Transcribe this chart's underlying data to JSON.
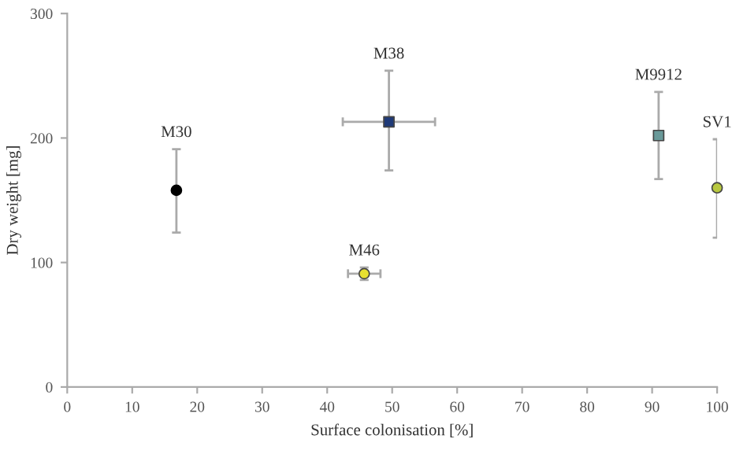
{
  "chart_data": {
    "type": "scatter",
    "xlabel": "Surface colonisation [%]",
    "ylabel": "Dry weight [mg]",
    "xlim": [
      0,
      100
    ],
    "ylim": [
      0,
      300
    ],
    "xticks": [
      0,
      10,
      20,
      30,
      40,
      50,
      60,
      70,
      80,
      90,
      100
    ],
    "yticks": [
      0,
      100,
      200,
      300
    ],
    "grid": false,
    "series": [
      {
        "color": "#000000",
        "marker": "circle",
        "x": [
          16.8
        ],
        "values": [
          158
        ],
        "errors": [
          [
            124,
            191
          ]
        ],
        "xerrors": [
          null
        ]
      },
      {
        "color": "#1f3a78",
        "marker": "square",
        "x": [
          49.5
        ],
        "values": [
          213
        ],
        "errors": [
          [
            174,
            254
          ]
        ],
        "xerrors": [
          [
            42.4,
            56.6
          ]
        ]
      },
      {
        "color": "#e8e030",
        "marker": "circle",
        "x": [
          45.7
        ],
        "values": [
          91
        ],
        "errors": [
          [
            86,
            96
          ]
        ],
        "xerrors": [
          [
            43.2,
            48.2
          ]
        ]
      },
      {
        "color": "#6a9a9a",
        "marker": "square",
        "x": [
          91
        ],
        "values": [
          202
        ],
        "errors": [
          [
            167,
            237
          ]
        ],
        "xerrors": [
          null
        ]
      },
      {
        "color": "#b8c840",
        "marker": "circle",
        "x": [
          100
        ],
        "values": [
          160
        ],
        "errors": [
          [
            120,
            199
          ]
        ],
        "xerrors": [
          null
        ]
      }
    ],
    "annotations": [
      {
        "text": "M30",
        "x": 16.8,
        "y": 191
      },
      {
        "text": "M38",
        "x": 49.5,
        "y": 254
      },
      {
        "text": "M46",
        "x": 45.7,
        "y": 96
      },
      {
        "text": "M9912",
        "x": 91,
        "y": 237
      },
      {
        "text": "SV1",
        "x": 100,
        "y": 199
      }
    ]
  }
}
